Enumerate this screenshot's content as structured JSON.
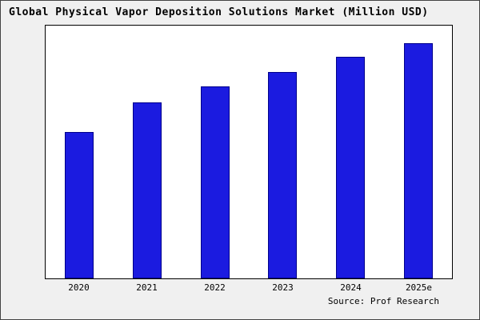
{
  "title": "Global Physical Vapor Deposition Solutions Market (Million USD)",
  "source": "Source: Prof Research",
  "colors": {
    "bar_fill": "#1b1be0",
    "bar_border": "#00008b",
    "background": "#f0f0f0",
    "plot_background": "#ffffff",
    "axis_border": "#000000"
  },
  "chart_data": {
    "type": "bar",
    "title": "Global Physical Vapor Deposition Solutions Market (Million USD)",
    "categories": [
      "2020",
      "2021",
      "2022",
      "2023",
      "2024",
      "2025e"
    ],
    "values": [
      1850,
      2230,
      2430,
      2610,
      2800,
      2980
    ],
    "xlabel": "",
    "ylabel": "",
    "ylim": [
      0,
      3200
    ],
    "grid": false,
    "legend": false,
    "annotation": "Source: Prof Research"
  }
}
